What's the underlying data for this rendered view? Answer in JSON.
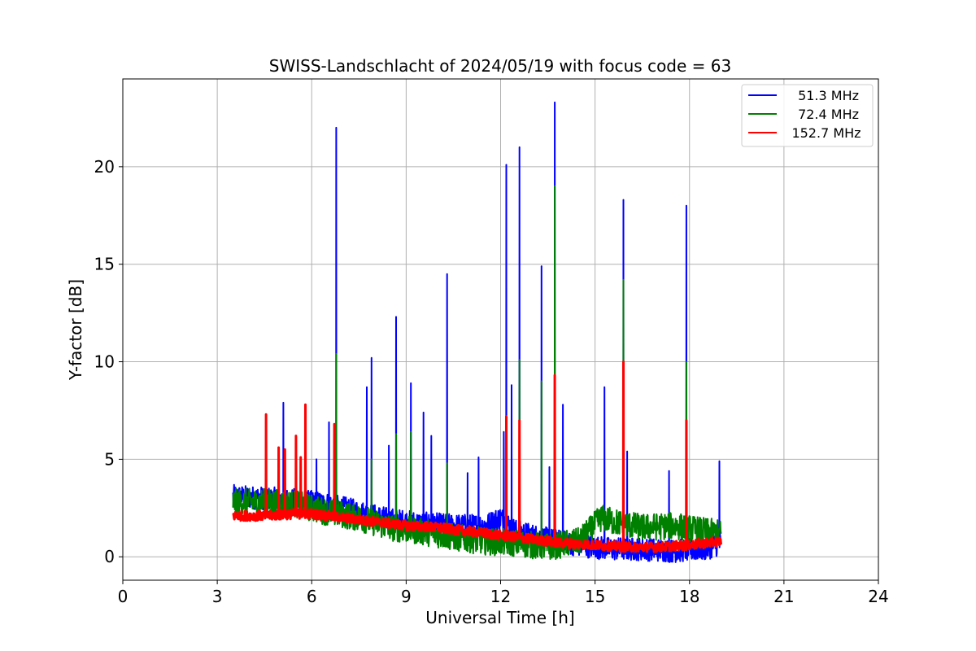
{
  "chart_data": {
    "type": "line",
    "title": "SWISS-Landschlacht of 2024/05/19 with focus code = 63",
    "xlabel": "Universal Time [h]",
    "ylabel": "Y-factor [dB]",
    "xlim": [
      0,
      24
    ],
    "ylim": [
      -1.2,
      24.5
    ],
    "xticks": [
      0,
      3,
      6,
      9,
      12,
      15,
      18,
      21,
      24
    ],
    "xtick_labels": [
      "0",
      "3",
      "6",
      "9",
      "12",
      "15",
      "18",
      "21",
      "24"
    ],
    "yticks": [
      0,
      5,
      10,
      15,
      20
    ],
    "ytick_labels": [
      "0",
      "5",
      "10",
      "15",
      "20"
    ],
    "grid": true,
    "legend_position": "top-right",
    "series": [
      {
        "name": " 51.3 MHz",
        "color": "#0000ff",
        "baseline": [
          [
            3.5,
            3.1
          ],
          [
            4.5,
            3.0
          ],
          [
            5.5,
            2.9
          ],
          [
            6.5,
            2.7
          ],
          [
            7.5,
            2.3
          ],
          [
            8.5,
            1.9
          ],
          [
            9.5,
            1.7
          ],
          [
            10.5,
            1.6
          ],
          [
            11.5,
            1.6
          ],
          [
            12.0,
            2.0
          ],
          [
            12.5,
            1.3
          ],
          [
            13.5,
            0.9
          ],
          [
            14.5,
            0.6
          ],
          [
            15.5,
            0.4
          ],
          [
            16.5,
            0.4
          ],
          [
            17.5,
            0.3
          ],
          [
            18.5,
            0.4
          ],
          [
            19.0,
            0.7
          ]
        ],
        "spikes": [
          [
            5.1,
            7.9
          ],
          [
            6.15,
            5.0
          ],
          [
            6.55,
            6.9
          ],
          [
            6.78,
            22.0
          ],
          [
            7.75,
            8.7
          ],
          [
            7.9,
            10.2
          ],
          [
            8.45,
            5.7
          ],
          [
            8.68,
            12.3
          ],
          [
            9.15,
            8.9
          ],
          [
            9.55,
            7.4
          ],
          [
            9.8,
            6.2
          ],
          [
            10.3,
            14.5
          ],
          [
            10.95,
            4.3
          ],
          [
            11.3,
            5.1
          ],
          [
            12.1,
            6.4
          ],
          [
            12.18,
            20.1
          ],
          [
            12.35,
            8.8
          ],
          [
            12.6,
            21.0
          ],
          [
            13.3,
            14.9
          ],
          [
            13.55,
            4.6
          ],
          [
            13.72,
            23.3
          ],
          [
            13.98,
            7.8
          ],
          [
            15.3,
            8.7
          ],
          [
            15.9,
            18.3
          ],
          [
            16.02,
            5.4
          ],
          [
            17.35,
            4.4
          ],
          [
            17.9,
            18.0
          ],
          [
            18.95,
            4.9
          ]
        ]
      },
      {
        "name": " 72.4 MHz",
        "color": "#008000",
        "baseline": [
          [
            3.5,
            2.8
          ],
          [
            4.5,
            2.8
          ],
          [
            5.5,
            2.7
          ],
          [
            6.5,
            2.3
          ],
          [
            7.5,
            2.0
          ],
          [
            8.5,
            1.5
          ],
          [
            9.5,
            1.3
          ],
          [
            10.5,
            1.0
          ],
          [
            11.5,
            0.8
          ],
          [
            12.5,
            0.7
          ],
          [
            13.5,
            0.5
          ],
          [
            14.5,
            0.8
          ],
          [
            15.2,
            2.0
          ],
          [
            15.6,
            1.8
          ],
          [
            16.5,
            1.5
          ],
          [
            17.5,
            1.6
          ],
          [
            18.5,
            1.3
          ],
          [
            19.0,
            1.2
          ]
        ],
        "spikes": [
          [
            6.78,
            10.4
          ],
          [
            7.9,
            5.0
          ],
          [
            8.68,
            6.3
          ],
          [
            9.15,
            6.4
          ],
          [
            10.3,
            4.8
          ],
          [
            12.6,
            10.1
          ],
          [
            13.3,
            9.0
          ],
          [
            13.72,
            19.0
          ],
          [
            15.9,
            14.2
          ],
          [
            17.9,
            10.0
          ]
        ]
      },
      {
        "name": "152.7 MHz",
        "color": "#ff0000",
        "baseline": [
          [
            3.5,
            2.1
          ],
          [
            4.5,
            2.1
          ],
          [
            5.5,
            2.2
          ],
          [
            6.0,
            2.2
          ],
          [
            7.0,
            2.0
          ],
          [
            8.0,
            1.8
          ],
          [
            9.0,
            1.6
          ],
          [
            10.0,
            1.5
          ],
          [
            11.0,
            1.3
          ],
          [
            12.0,
            1.1
          ],
          [
            13.0,
            0.9
          ],
          [
            14.0,
            0.7
          ],
          [
            15.0,
            0.6
          ],
          [
            16.0,
            0.5
          ],
          [
            17.0,
            0.5
          ],
          [
            18.0,
            0.6
          ],
          [
            19.0,
            0.8
          ]
        ],
        "spikes": [
          [
            4.55,
            7.3
          ],
          [
            4.95,
            5.6
          ],
          [
            5.15,
            5.5
          ],
          [
            5.5,
            6.2
          ],
          [
            5.65,
            5.1
          ],
          [
            5.8,
            7.8
          ],
          [
            6.72,
            6.8
          ],
          [
            12.18,
            7.2
          ],
          [
            12.6,
            7.0
          ],
          [
            13.72,
            9.3
          ],
          [
            15.9,
            10.0
          ],
          [
            17.9,
            7.0
          ]
        ]
      }
    ]
  }
}
